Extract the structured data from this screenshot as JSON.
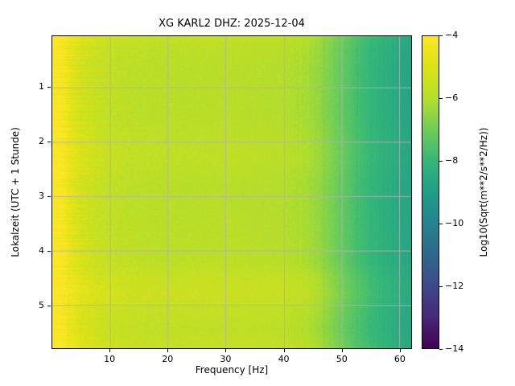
{
  "figure": {
    "background": "#ffffff"
  },
  "chart_data": {
    "type": "heatmap",
    "title": "XG KARL2  DHZ: 2025-12-04",
    "xlabel": "Frequency [Hz]",
    "ylabel": "Lokalzeit (UTC + 1 Stunde)",
    "colorbar_label": "Log10(Sqrt(m**2/s**2/Hz))",
    "x_range": [
      0,
      62.1
    ],
    "y_range": [
      0.05,
      5.8
    ],
    "value_range": [
      -14,
      -4
    ],
    "xticks": [
      10,
      20,
      30,
      40,
      50,
      60
    ],
    "yticks": [
      1,
      2,
      3,
      4,
      5
    ],
    "colorbar_ticks": [
      -4,
      -6,
      -8,
      -10,
      -12,
      -14
    ],
    "grid": true,
    "grid_color": "#b2b2b2",
    "colormap": "viridis",
    "colormap_stops": [
      [
        0.0,
        "#440154"
      ],
      [
        0.1,
        "#482878"
      ],
      [
        0.2,
        "#3e4a89"
      ],
      [
        0.3,
        "#31688e"
      ],
      [
        0.4,
        "#26828e"
      ],
      [
        0.5,
        "#1f9e89"
      ],
      [
        0.6,
        "#35b779"
      ],
      [
        0.7,
        "#6ece58"
      ],
      [
        0.8,
        "#b5de2b"
      ],
      [
        0.9,
        "#dde318"
      ],
      [
        1.0,
        "#fde725"
      ]
    ],
    "spectrum_profile": {
      "freqs": [
        0,
        1,
        2,
        3,
        5,
        8,
        12,
        20,
        30,
        40,
        44,
        48,
        52,
        57,
        62
      ],
      "levels": [
        -4.0,
        -4.1,
        -4.3,
        -4.8,
        -5.3,
        -5.6,
        -5.8,
        -5.9,
        -5.9,
        -6.0,
        -6.2,
        -6.8,
        -7.6,
        -8.3,
        -8.7
      ]
    },
    "time_variation": {
      "times": [
        0.05,
        0.25,
        0.7,
        1.5,
        2.0,
        2.3,
        2.8,
        3.5,
        4.2,
        4.5,
        4.8,
        5.15,
        5.45,
        5.8
      ],
      "delta": [
        0.3,
        0.1,
        0.0,
        0.0,
        0.12,
        0.15,
        0.0,
        0.02,
        0.08,
        0.35,
        0.45,
        0.25,
        0.15,
        0.35
      ]
    },
    "noise": {
      "base_amp": 0.3,
      "high_amp": 0.1,
      "streak_amp": 0.4,
      "burst_amp": 0.55,
      "col_amp": 0.1
    }
  }
}
